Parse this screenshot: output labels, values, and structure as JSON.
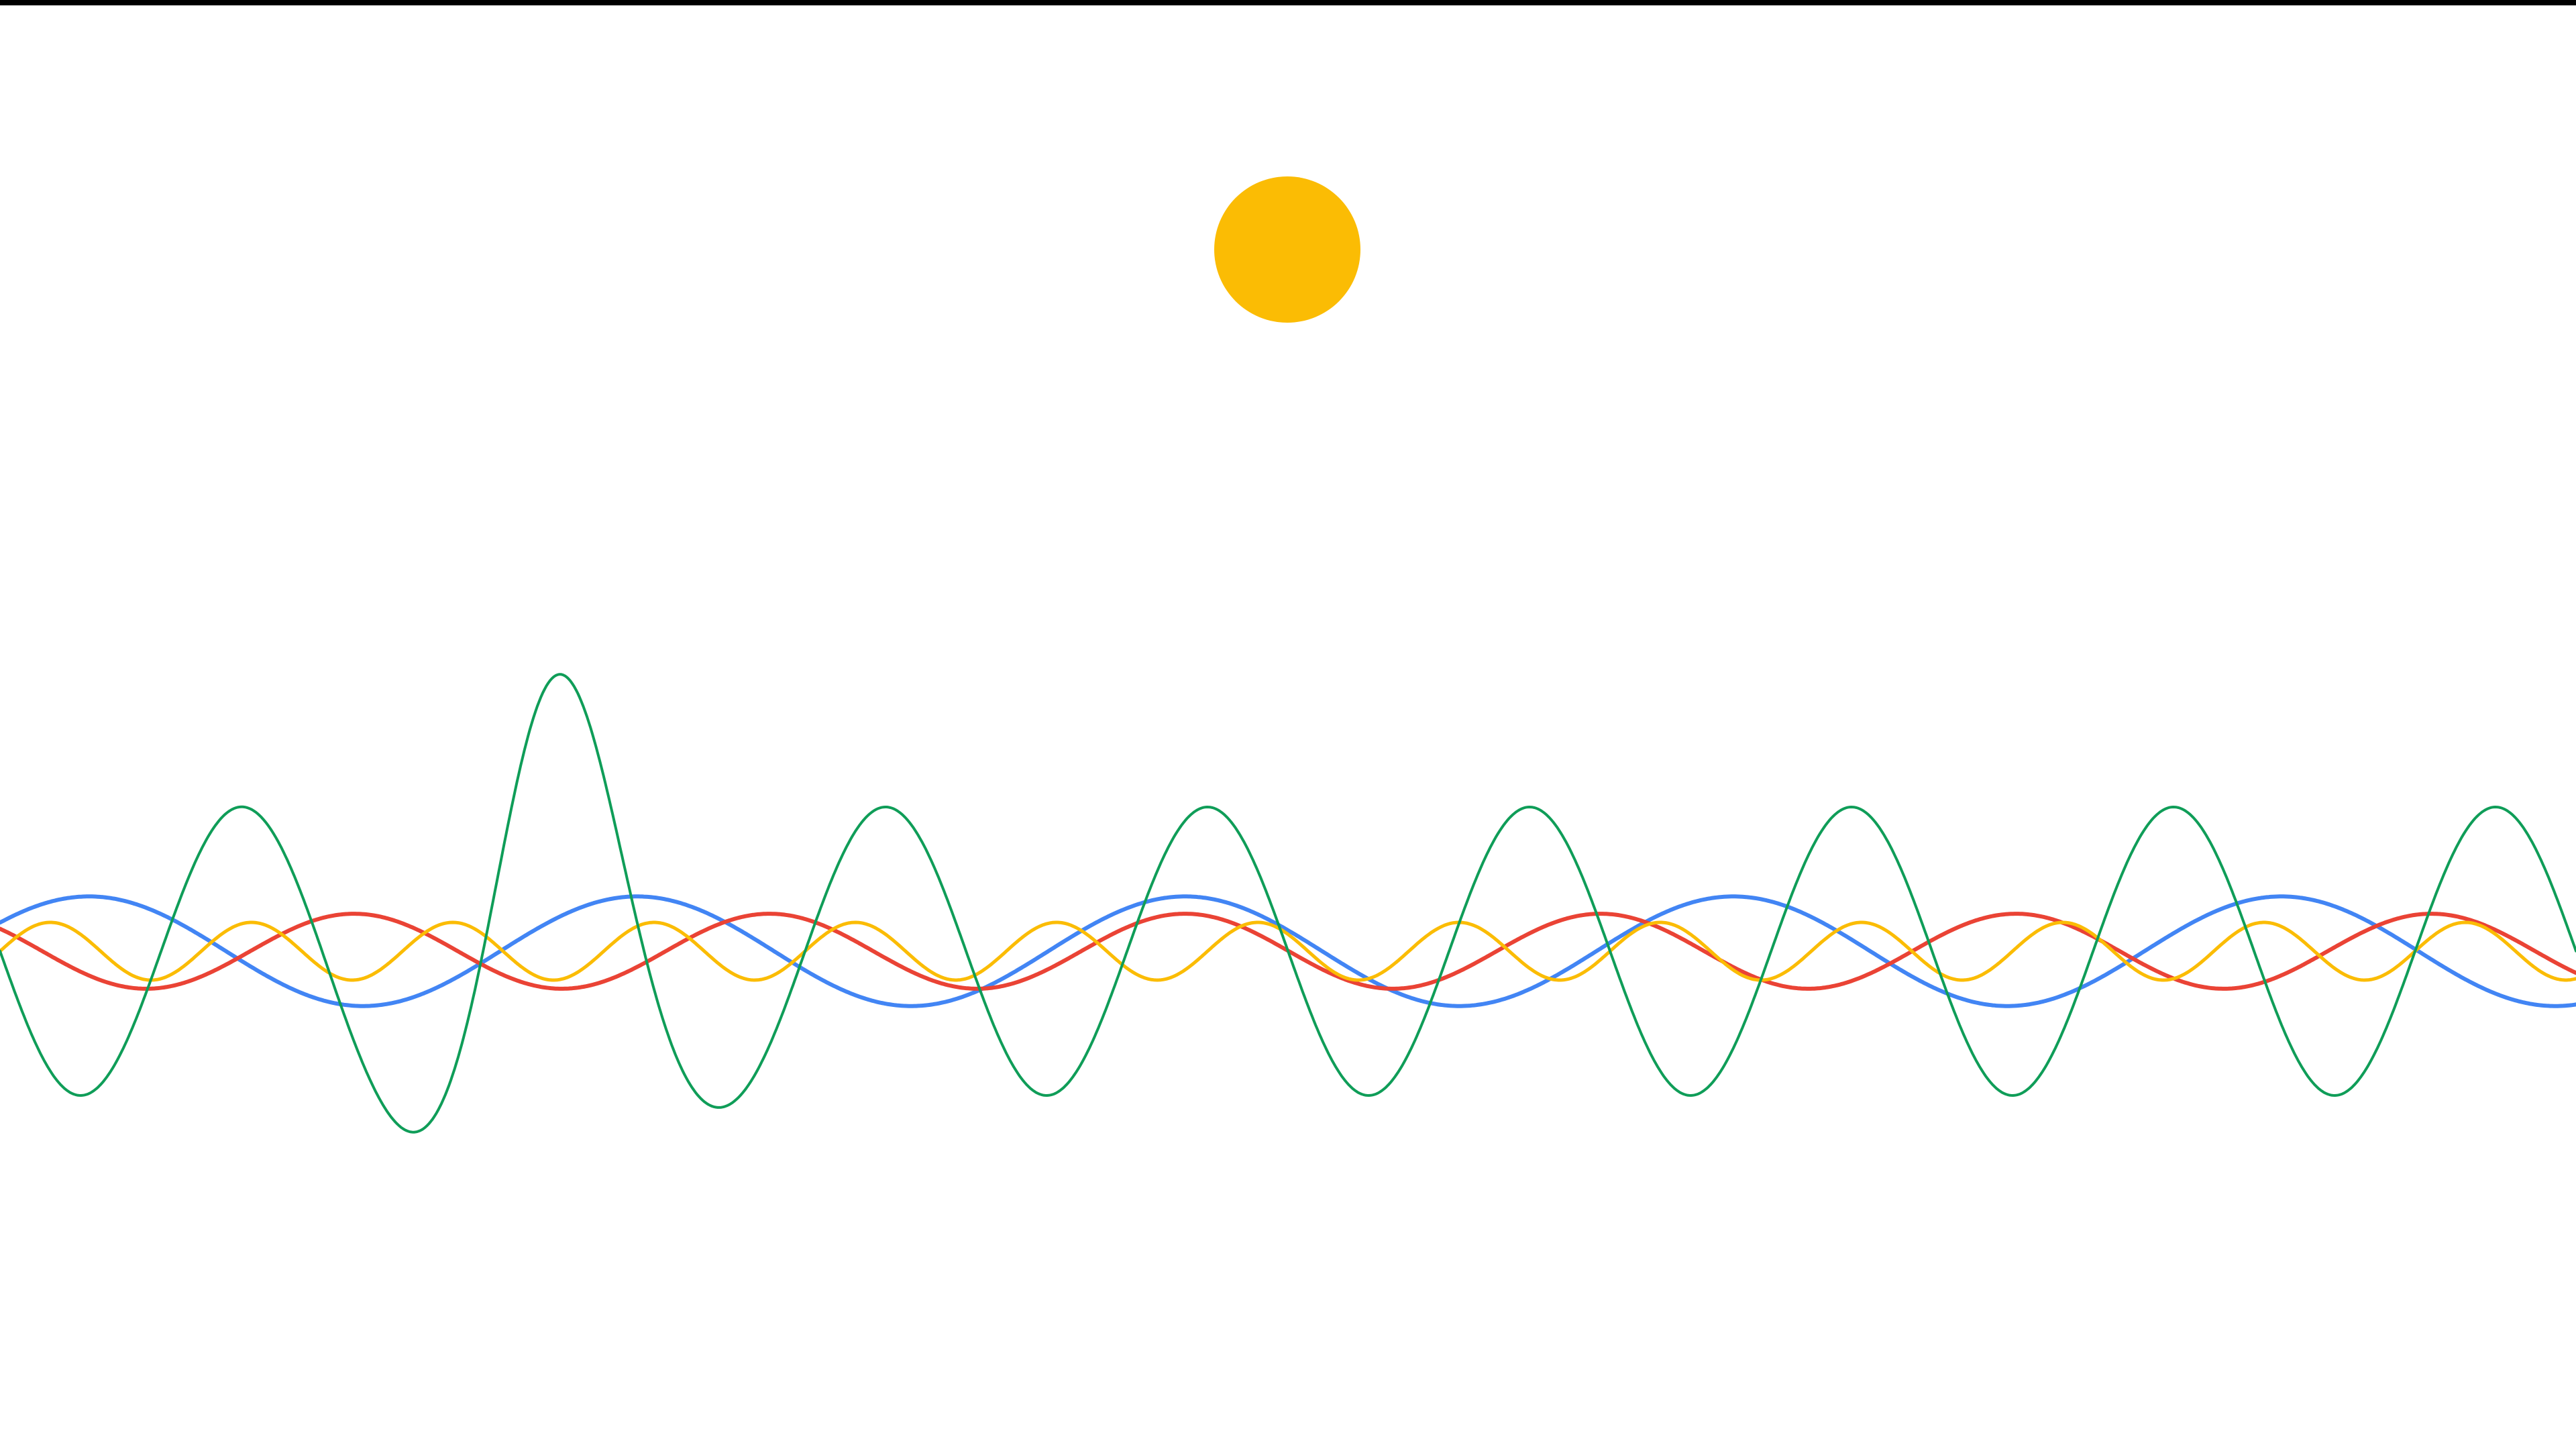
{
  "colors": {
    "top_bar": "#000000",
    "background": "#ffffff",
    "mic_dot": "#FBBC04",
    "blue": "#4285F4",
    "red": "#EA4335",
    "yellow": "#FBBC04",
    "green": "#0F9D58"
  },
  "mic": {
    "icon": "voice-listening-dot-icon",
    "state": "listening"
  },
  "waves": [
    {
      "name": "blue-wave",
      "color_key": "blue",
      "amplitude": 0.38,
      "cycles": 4.7,
      "phase": 0.55,
      "stroke": 6,
      "peak": null
    },
    {
      "name": "red-wave",
      "color_key": "red",
      "amplitude": 0.26,
      "cycles": 6.2,
      "phase": 2.5,
      "stroke": 6,
      "peak": null
    },
    {
      "name": "yellow-wave",
      "color_key": "yellow",
      "amplitude": 0.2,
      "cycles": 12.8,
      "phase": 0.0,
      "stroke": 5,
      "peak": null
    },
    {
      "name": "green-wave",
      "color_key": "green",
      "amplitude": 1.0,
      "cycles": 8.0,
      "phase": 3.14,
      "stroke": 4,
      "peak": {
        "center": 0.21,
        "width": 0.045,
        "gain": 0.95
      }
    }
  ]
}
